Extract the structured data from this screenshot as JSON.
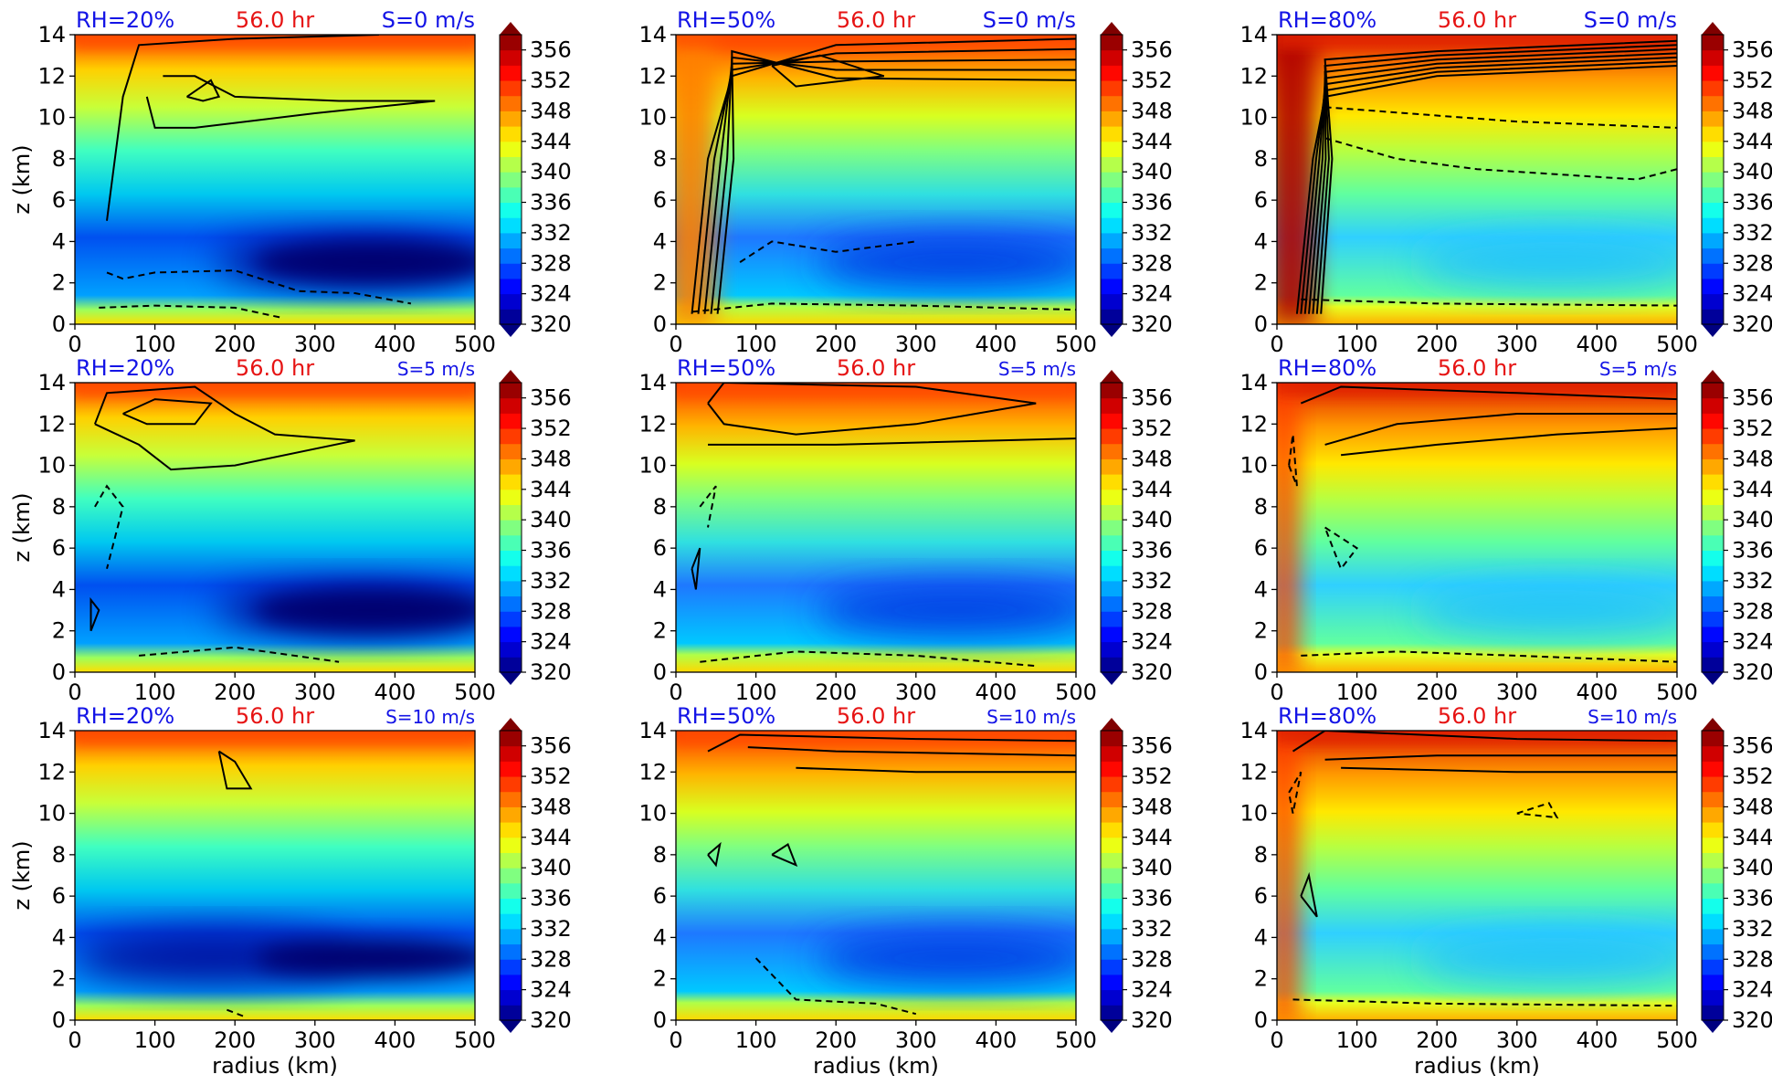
{
  "colors": {
    "title_rh": "#1414e6",
    "title_time": "#e61414",
    "title_shear": "#1414e6",
    "contour": "#000000"
  },
  "chart_data": [
    {
      "type": "heatmap",
      "panel": "RH20-S0",
      "row": 0,
      "col": 0,
      "rh": 20,
      "shear": 0,
      "title_left": "RH=20%",
      "title_center": "56.0 hr",
      "title_right": "S=0 m/s",
      "ylabel": "z (km)",
      "xlabel": "",
      "xlim": [
        0,
        500
      ],
      "ylim": [
        0,
        14
      ],
      "xticks": [
        0,
        100,
        200,
        300,
        400,
        500
      ],
      "yticks": [
        0,
        2,
        4,
        6,
        8,
        10,
        12,
        14
      ],
      "colorbar": {
        "min": 320,
        "max": 358,
        "ticks": [
          320,
          324,
          328,
          332,
          336,
          340,
          344,
          348,
          352,
          356
        ],
        "colormap": "jet",
        "extend": "both"
      }
    },
    {
      "type": "heatmap",
      "panel": "RH50-S0",
      "row": 0,
      "col": 1,
      "rh": 50,
      "shear": 0,
      "title_left": "RH=50%",
      "title_center": "56.0 hr",
      "title_right": "S=0 m/s",
      "ylabel": "",
      "xlabel": "",
      "xlim": [
        0,
        500
      ],
      "ylim": [
        0,
        14
      ],
      "xticks": [
        0,
        100,
        200,
        300,
        400,
        500
      ],
      "yticks": [
        0,
        2,
        4,
        6,
        8,
        10,
        12,
        14
      ],
      "colorbar": {
        "min": 320,
        "max": 358,
        "ticks": [
          320,
          324,
          328,
          332,
          336,
          340,
          344,
          348,
          352,
          356
        ],
        "colormap": "jet",
        "extend": "both"
      }
    },
    {
      "type": "heatmap",
      "panel": "RH80-S0",
      "row": 0,
      "col": 2,
      "rh": 80,
      "shear": 0,
      "title_left": "RH=80%",
      "title_center": "56.0 hr",
      "title_right": "S=0 m/s",
      "ylabel": "",
      "xlabel": "",
      "xlim": [
        0,
        500
      ],
      "ylim": [
        0,
        14
      ],
      "xticks": [
        0,
        100,
        200,
        300,
        400,
        500
      ],
      "yticks": [
        0,
        2,
        4,
        6,
        8,
        10,
        12,
        14
      ],
      "colorbar": {
        "min": 320,
        "max": 358,
        "ticks": [
          320,
          324,
          328,
          332,
          336,
          340,
          344,
          348,
          352,
          356
        ],
        "colormap": "jet",
        "extend": "both"
      }
    },
    {
      "type": "heatmap",
      "panel": "RH20-S5",
      "row": 1,
      "col": 0,
      "rh": 20,
      "shear": 5,
      "title_left": "RH=20%",
      "title_center": "56.0 hr",
      "title_right": "S=5 m/s",
      "ylabel": "z (km)",
      "xlabel": "",
      "xlim": [
        0,
        500
      ],
      "ylim": [
        0,
        14
      ],
      "xticks": [
        0,
        100,
        200,
        300,
        400,
        500
      ],
      "yticks": [
        0,
        2,
        4,
        6,
        8,
        10,
        12,
        14
      ],
      "colorbar": {
        "min": 320,
        "max": 358,
        "ticks": [
          320,
          324,
          328,
          332,
          336,
          340,
          344,
          348,
          352,
          356
        ],
        "colormap": "jet",
        "extend": "both"
      }
    },
    {
      "type": "heatmap",
      "panel": "RH50-S5",
      "row": 1,
      "col": 1,
      "rh": 50,
      "shear": 5,
      "title_left": "RH=50%",
      "title_center": "56.0 hr",
      "title_right": "S=5 m/s",
      "ylabel": "",
      "xlabel": "",
      "xlim": [
        0,
        500
      ],
      "ylim": [
        0,
        14
      ],
      "xticks": [
        0,
        100,
        200,
        300,
        400,
        500
      ],
      "yticks": [
        0,
        2,
        4,
        6,
        8,
        10,
        12,
        14
      ],
      "colorbar": {
        "min": 320,
        "max": 358,
        "ticks": [
          320,
          324,
          328,
          332,
          336,
          340,
          344,
          348,
          352,
          356
        ],
        "colormap": "jet",
        "extend": "both"
      }
    },
    {
      "type": "heatmap",
      "panel": "RH80-S5",
      "row": 1,
      "col": 2,
      "rh": 80,
      "shear": 5,
      "title_left": "RH=80%",
      "title_center": "56.0 hr",
      "title_right": "S=5 m/s",
      "ylabel": "",
      "xlabel": "",
      "xlim": [
        0,
        500
      ],
      "ylim": [
        0,
        14
      ],
      "xticks": [
        0,
        100,
        200,
        300,
        400,
        500
      ],
      "yticks": [
        0,
        2,
        4,
        6,
        8,
        10,
        12,
        14
      ],
      "colorbar": {
        "min": 320,
        "max": 358,
        "ticks": [
          320,
          324,
          328,
          332,
          336,
          340,
          344,
          348,
          352,
          356
        ],
        "colormap": "jet",
        "extend": "both"
      }
    },
    {
      "type": "heatmap",
      "panel": "RH20-S10",
      "row": 2,
      "col": 0,
      "rh": 20,
      "shear": 10,
      "title_left": "RH=20%",
      "title_center": "56.0 hr",
      "title_right": "S=10 m/s",
      "ylabel": "z (km)",
      "xlabel": "radius (km)",
      "xlim": [
        0,
        500
      ],
      "ylim": [
        0,
        14
      ],
      "xticks": [
        0,
        100,
        200,
        300,
        400,
        500
      ],
      "yticks": [
        0,
        2,
        4,
        6,
        8,
        10,
        12,
        14
      ],
      "colorbar": {
        "min": 320,
        "max": 358,
        "ticks": [
          320,
          324,
          328,
          332,
          336,
          340,
          344,
          348,
          352,
          356
        ],
        "colormap": "jet",
        "extend": "both"
      }
    },
    {
      "type": "heatmap",
      "panel": "RH50-S10",
      "row": 2,
      "col": 1,
      "rh": 50,
      "shear": 10,
      "title_left": "RH=50%",
      "title_center": "56.0 hr",
      "title_right": "S=10 m/s",
      "ylabel": "",
      "xlabel": "radius (km)",
      "xlim": [
        0,
        500
      ],
      "ylim": [
        0,
        14
      ],
      "xticks": [
        0,
        100,
        200,
        300,
        400,
        500
      ],
      "yticks": [
        0,
        2,
        4,
        6,
        8,
        10,
        12,
        14
      ],
      "colorbar": {
        "min": 320,
        "max": 358,
        "ticks": [
          320,
          324,
          328,
          332,
          336,
          340,
          344,
          348,
          352,
          356
        ],
        "colormap": "jet",
        "extend": "both"
      }
    },
    {
      "type": "heatmap",
      "panel": "RH80-S10",
      "row": 2,
      "col": 2,
      "rh": 80,
      "shear": 10,
      "title_left": "RH=80%",
      "title_center": "56.0 hr",
      "title_right": "S=10 m/s",
      "ylabel": "",
      "xlabel": "radius (km)",
      "xlim": [
        0,
        500
      ],
      "ylim": [
        0,
        14
      ],
      "xticks": [
        0,
        100,
        200,
        300,
        400,
        500
      ],
      "yticks": [
        0,
        2,
        4,
        6,
        8,
        10,
        12,
        14
      ],
      "colorbar": {
        "min": 320,
        "max": 358,
        "ticks": [
          320,
          324,
          328,
          332,
          336,
          340,
          344,
          348,
          352,
          356
        ],
        "colormap": "jet",
        "extend": "both"
      }
    }
  ]
}
